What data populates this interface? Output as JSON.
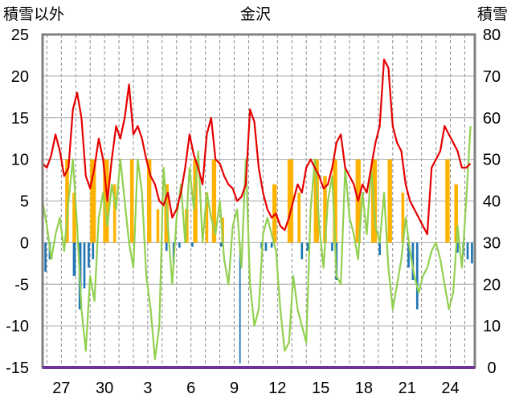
{
  "chart_data": {
    "type": "bar",
    "title": "金沢",
    "ylabel_left": "積雪以外",
    "ylabel_right": "積雪",
    "ylim_left": [
      -15,
      25
    ],
    "ylim_right": [
      0,
      80
    ],
    "yticks_left": [
      "25",
      "20",
      "15",
      "10",
      "5",
      "0",
      "-5",
      "-10",
      "-15"
    ],
    "yticks_right": [
      "80",
      "70",
      "60",
      "50",
      "40",
      "30",
      "20",
      "10",
      "0"
    ],
    "xticks": [
      "27",
      "30",
      "3",
      "6",
      "9",
      "12",
      "15",
      "18",
      "21",
      "24"
    ],
    "x_range": [
      0,
      30
    ],
    "xtick_positions": [
      1.3,
      4.3,
      7.3,
      10.3,
      13.3,
      16.3,
      19.3,
      22.3,
      25.3,
      28.3
    ],
    "grid": true,
    "series": [
      {
        "color": "#e60000",
        "kind": "line",
        "x": [
          0.0,
          0.3,
          0.6,
          0.9,
          1.2,
          1.5,
          1.8,
          2.1,
          2.4,
          2.7,
          3.0,
          3.3,
          3.6,
          3.9,
          4.2,
          4.5,
          4.8,
          5.1,
          5.4,
          5.7,
          6.0,
          6.3,
          6.6,
          6.9,
          7.2,
          7.5,
          7.8,
          8.1,
          8.4,
          8.7,
          9.0,
          9.3,
          9.6,
          9.9,
          10.2,
          10.5,
          10.8,
          11.1,
          11.4,
          11.7,
          12.0,
          12.3,
          12.6,
          12.9,
          13.2,
          13.5,
          13.8,
          14.1,
          14.4,
          14.7,
          15.0,
          15.3,
          15.6,
          15.9,
          16.2,
          16.5,
          16.8,
          17.1,
          17.4,
          17.7,
          18.0,
          18.3,
          18.6,
          18.9,
          19.2,
          19.5,
          19.8,
          20.1,
          20.4,
          20.7,
          21.0,
          21.3,
          21.6,
          21.9,
          22.2,
          22.5,
          22.8,
          23.1,
          23.4,
          23.7,
          24.0,
          24.3,
          24.6,
          24.9,
          25.2,
          25.5,
          25.8,
          26.1,
          26.4,
          26.7,
          27.0,
          27.3,
          27.6,
          27.9,
          28.2,
          28.5,
          28.8,
          29.1,
          29.4,
          29.7
        ],
        "values": [
          9.5,
          9.0,
          10.5,
          13.0,
          11.0,
          8.0,
          9.0,
          16.0,
          18.0,
          15.0,
          8.0,
          6.5,
          9.0,
          12.5,
          10.0,
          5.0,
          10.0,
          14.0,
          12.5,
          15.0,
          19.0,
          13.0,
          14.0,
          12.5,
          10.0,
          8.0,
          7.0,
          5.0,
          4.5,
          6.0,
          3.0,
          4.0,
          6.0,
          9.0,
          13.0,
          10.5,
          9.0,
          7.0,
          13.0,
          15.0,
          10.0,
          9.5,
          8.0,
          7.0,
          6.5,
          5.0,
          5.5,
          7.0,
          16.0,
          14.5,
          9.0,
          6.0,
          4.0,
          3.0,
          3.5,
          2.0,
          1.5,
          3.0,
          5.0,
          7.0,
          6.0,
          9.0,
          10.0,
          9.0,
          8.0,
          6.5,
          7.0,
          9.0,
          12.0,
          13.0,
          9.0,
          8.0,
          7.0,
          5.0,
          7.0,
          6.0,
          9.0,
          12.0,
          14.0,
          22.0,
          21.0,
          14.0,
          12.0,
          11.0,
          7.0,
          5.0,
          4.0,
          3.0,
          2.0,
          1.0,
          9.0,
          10.0,
          11.0,
          14.0,
          13.0,
          12.0,
          11.0,
          9.0,
          9.0,
          9.5
        ]
      },
      {
        "color": "#92d050",
        "kind": "line",
        "x": [
          0.0,
          0.3,
          0.6,
          0.9,
          1.2,
          1.5,
          1.8,
          2.1,
          2.4,
          2.7,
          3.0,
          3.3,
          3.6,
          3.9,
          4.2,
          4.5,
          4.8,
          5.1,
          5.4,
          5.7,
          6.0,
          6.3,
          6.6,
          6.9,
          7.2,
          7.5,
          7.8,
          8.1,
          8.4,
          8.7,
          9.0,
          9.3,
          9.6,
          9.9,
          10.2,
          10.5,
          10.8,
          11.1,
          11.4,
          11.7,
          12.0,
          12.3,
          12.6,
          12.9,
          13.2,
          13.5,
          13.8,
          14.1,
          14.4,
          14.7,
          15.0,
          15.3,
          15.6,
          15.9,
          16.2,
          16.5,
          16.8,
          17.1,
          17.4,
          17.7,
          18.0,
          18.3,
          18.6,
          18.9,
          19.2,
          19.5,
          19.8,
          20.1,
          20.4,
          20.7,
          21.0,
          21.3,
          21.6,
          21.9,
          22.2,
          22.5,
          22.8,
          23.1,
          23.4,
          23.7,
          24.0,
          24.3,
          24.6,
          24.9,
          25.2,
          25.5,
          25.8,
          26.1,
          26.4,
          26.7,
          27.0,
          27.3,
          27.6,
          27.9,
          28.2,
          28.5,
          28.8,
          29.1,
          29.4,
          29.7
        ],
        "values": [
          5.0,
          2.0,
          -2.0,
          1.0,
          3.0,
          -1.0,
          5.0,
          10.0,
          2.0,
          -8.0,
          -13.0,
          -4.0,
          -7.0,
          3.0,
          6.0,
          2.0,
          7.0,
          4.0,
          10.0,
          5.0,
          0.0,
          -3.0,
          10.0,
          6.0,
          -4.0,
          -8.0,
          -14.0,
          -10.0,
          9.0,
          2.0,
          -5.0,
          3.0,
          7.0,
          0.0,
          9.0,
          4.0,
          11.0,
          0.0,
          6.0,
          3.0,
          1.0,
          5.0,
          -2.0,
          -5.0,
          2.0,
          4.0,
          -3.0,
          10.0,
          -5.0,
          -10.0,
          -8.0,
          1.0,
          3.0,
          1.0,
          -1.0,
          -8.0,
          -13.0,
          -12.0,
          -4.0,
          -8.0,
          -10.0,
          -12.0,
          4.0,
          10.0,
          2.0,
          -3.0,
          5.0,
          8.0,
          -4.0,
          -5.0,
          9.0,
          3.0,
          1.0,
          -2.0,
          6.0,
          1.0,
          9.0,
          2.0,
          0.0,
          6.0,
          -3.0,
          -8.0,
          -5.0,
          -2.0,
          3.0,
          -1.0,
          -4.0,
          -6.0,
          -4.0,
          -3.0,
          -1.0,
          0.0,
          -2.0,
          -5.0,
          -8.0,
          -6.0,
          2.0,
          -3.0,
          5.0,
          14.0
        ]
      },
      {
        "color": "#ffb300",
        "kind": "bars",
        "x": [
          1.7,
          2.2,
          3.5,
          4.4,
          5.0,
          6.2,
          7.4,
          8.0,
          8.6,
          10.0,
          10.6,
          11.4,
          11.9,
          12.5,
          16.1,
          17.2,
          17.8,
          19.0,
          19.6,
          20.3,
          21.9,
          23.0,
          24.1,
          25.0,
          28.1,
          28.7
        ],
        "values": [
          10.0,
          6.0,
          10.0,
          10.0,
          7.0,
          10.0,
          10.0,
          4.0,
          7.0,
          4.0,
          10.0,
          6.0,
          10.0,
          3.0,
          7.0,
          10.0,
          6.0,
          10.0,
          8.0,
          10.0,
          10.0,
          10.0,
          10.0,
          6.0,
          10.0,
          7.0
        ],
        "widths": [
          0.25,
          0.25,
          0.4,
          0.4,
          0.2,
          0.25,
          0.3,
          0.2,
          0.3,
          0.25,
          0.3,
          0.2,
          0.3,
          0.2,
          0.3,
          0.4,
          0.2,
          0.35,
          0.25,
          0.3,
          0.35,
          0.4,
          0.3,
          0.2,
          0.3,
          0.25
        ]
      },
      {
        "color": "#1f77b4",
        "kind": "bars",
        "x": [
          0.2,
          0.5,
          2.2,
          2.6,
          2.9,
          3.2,
          3.5,
          8.6,
          9.1,
          9.5,
          10.4,
          12.4,
          13.7,
          15.2,
          15.5,
          15.9,
          18.0,
          18.4,
          20.1,
          20.4,
          23.4,
          25.4,
          25.7,
          26.0,
          28.8,
          29.2,
          29.5,
          29.8
        ],
        "values": [
          -3.5,
          -2.0,
          -4.0,
          -8.0,
          -5.5,
          -3.0,
          -2.0,
          -1.0,
          -2.5,
          -0.6,
          -0.5,
          -0.5,
          -14.5,
          -0.7,
          -1.0,
          -0.6,
          -2.0,
          -1.0,
          -1.0,
          -4.5,
          -1.5,
          -3.0,
          -4.5,
          -8.0,
          -1.2,
          -1.5,
          -2.0,
          -2.5
        ],
        "widths": [
          0.15,
          0.15,
          0.2,
          0.2,
          0.15,
          0.15,
          0.15,
          0.15,
          0.15,
          0.15,
          0.15,
          0.15,
          0.1,
          0.15,
          0.15,
          0.15,
          0.15,
          0.15,
          0.15,
          0.15,
          0.15,
          0.15,
          0.15,
          0.15,
          0.15,
          0.15,
          0.15,
          0.15
        ]
      },
      {
        "color": "#7030a0",
        "kind": "hline",
        "values": [
          -15.0
        ]
      }
    ]
  }
}
